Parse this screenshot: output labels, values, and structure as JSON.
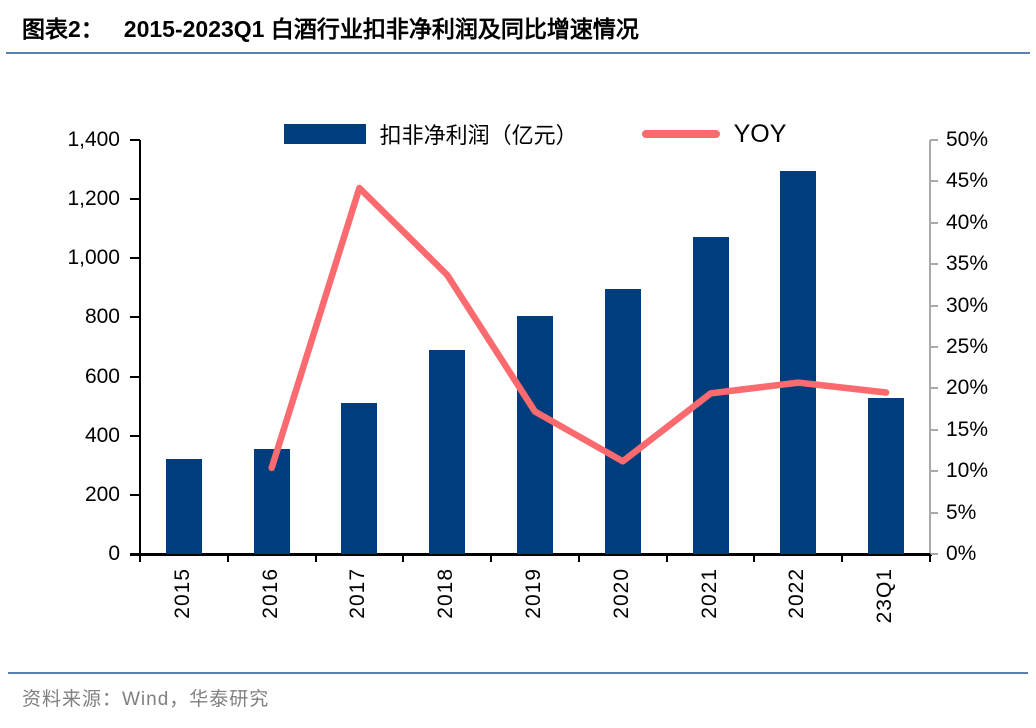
{
  "header": {
    "tag": "图表2：",
    "title": "2015-2023Q1 白酒行业扣非净利润及同比增速情况"
  },
  "legend": {
    "bar_label": "扣非净利润（亿元）",
    "line_label": "YOY"
  },
  "footer": {
    "source": "资料来源：Wind，华泰研究"
  },
  "colors": {
    "bar": "#003D7C",
    "line": "#FA6A6E",
    "title_rule": "#5B7FAE",
    "right_axis": "#A9A9A9",
    "footer_text": "#808080"
  },
  "chart_data": {
    "type": "bar+line dual-axis",
    "title": "2015-2023Q1 白酒行业扣非净利润及同比增速情况",
    "categories": [
      "2015",
      "2016",
      "2017",
      "2018",
      "2019",
      "2020",
      "2021",
      "2022",
      "23Q1"
    ],
    "series": [
      {
        "name": "扣非净利润（亿元）",
        "type": "bar",
        "axis": "left",
        "values": [
          320,
          356,
          512,
          690,
          806,
          896,
          1071,
          1295,
          529
        ]
      },
      {
        "name": "YOY",
        "type": "line",
        "axis": "right",
        "values": [
          null,
          10.4,
          44.2,
          33.7,
          17.2,
          11.2,
          19.4,
          20.7,
          19.5
        ]
      }
    ],
    "left_axis": {
      "min": 0,
      "max": 1400,
      "step": 200,
      "tick_labels": [
        "0",
        "200",
        "400",
        "600",
        "800",
        "1,000",
        "1,200",
        "1,400"
      ]
    },
    "right_axis": {
      "min": 0,
      "max": 50,
      "step": 5,
      "tick_labels": [
        "0%",
        "5%",
        "10%",
        "15%",
        "20%",
        "25%",
        "30%",
        "35%",
        "40%",
        "45%",
        "50%"
      ]
    },
    "grid": false,
    "legend_position": "top-center"
  }
}
